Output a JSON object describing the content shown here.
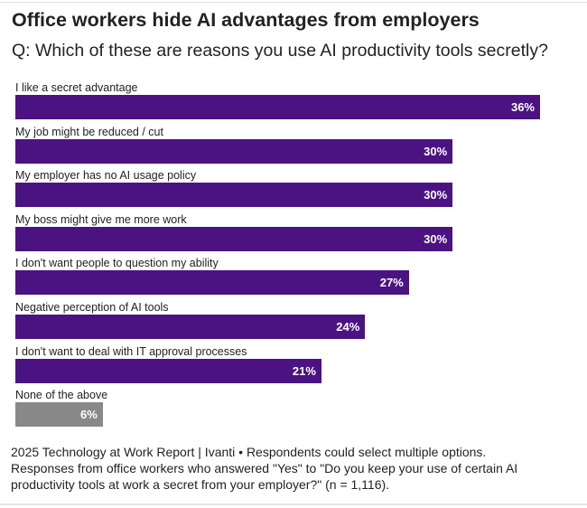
{
  "title": "Office workers hide AI advantages from employers",
  "subtitle": "Q: Which of these are reasons you use AI productivity tools secretly?",
  "chart_data": {
    "type": "bar",
    "orientation": "horizontal",
    "title": "Office workers hide AI advantages from employers",
    "subtitle": "Q: Which of these are reasons you use AI productivity tools secretly?",
    "categories": [
      "I like a secret advantage",
      "My job might be reduced / cut",
      "My employer has no AI usage policy",
      "My boss might give me more work",
      "I don't want people to question my ability",
      "Negative perception of AI tools",
      "I don't want to deal with IT approval processes",
      "None of the above"
    ],
    "values": [
      36,
      30,
      30,
      30,
      27,
      24,
      21,
      6
    ],
    "value_labels": [
      "36%",
      "30%",
      "30%",
      "30%",
      "27%",
      "24%",
      "21%",
      "6%"
    ],
    "unit": "%",
    "xlim": [
      0,
      36
    ],
    "grid": false,
    "colors": {
      "primary": "#4b1382",
      "none_of_above": "#888888"
    }
  },
  "footer": {
    "line1": "2025 Technology at Work Report | Ivanti • Respondents could select multiple options.",
    "line2": "Responses from office workers who answered \"Yes\" to \"Do you keep your use of certain AI productivity tools at work a secret from your employer?\" (n = 1,116)."
  }
}
